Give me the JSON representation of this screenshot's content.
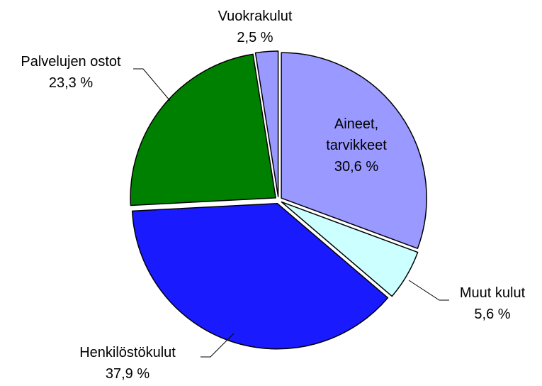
{
  "chart_data": {
    "type": "pie",
    "categories": [
      "Aineet, tarvikkeet",
      "Muut kulut",
      "Henkilöstökulut",
      "Palvelujen ostot",
      "Vuokrakulut"
    ],
    "values": [
      30.6,
      5.6,
      37.9,
      23.3,
      2.5
    ],
    "value_labels": [
      "30,6 %",
      "5,6 %",
      "37,9 %",
      "23,3 %",
      "2,5 %"
    ],
    "colors": [
      "#9999ff",
      "#ccffff",
      "#1a1aff",
      "#008000",
      "#9999ff"
    ]
  }
}
